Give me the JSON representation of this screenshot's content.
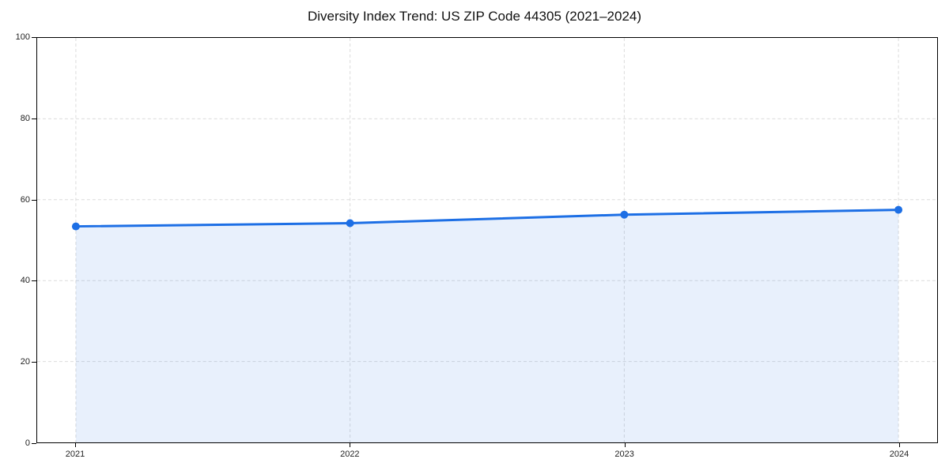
{
  "chart": {
    "title": "Diversity Index Trend: US ZIP Code 44305 (2021–2024)"
  },
  "chart_data": {
    "type": "line",
    "title": "Diversity Index Trend: US ZIP Code 44305 (2021–2024)",
    "categories": [
      "2021",
      "2022",
      "2023",
      "2024"
    ],
    "series": [
      {
        "name": "Diversity Index",
        "values": [
          53.4,
          54.2,
          56.3,
          57.5
        ]
      }
    ],
    "xlabel": "",
    "ylabel": "",
    "ylim": [
      0,
      100
    ],
    "yticks": [
      0,
      20,
      40,
      60,
      80,
      100
    ],
    "grid": true,
    "grid_style": "dashed",
    "legend": "none",
    "area_fill": true,
    "marker": "circle",
    "colors": {
      "line": "#1d6fe5",
      "marker": "#1d6fe5",
      "fill_opacity": 0.1,
      "grid": "#dcdcdc",
      "axis": "#000000",
      "tick_label": "#222222",
      "title": "#111111"
    }
  }
}
